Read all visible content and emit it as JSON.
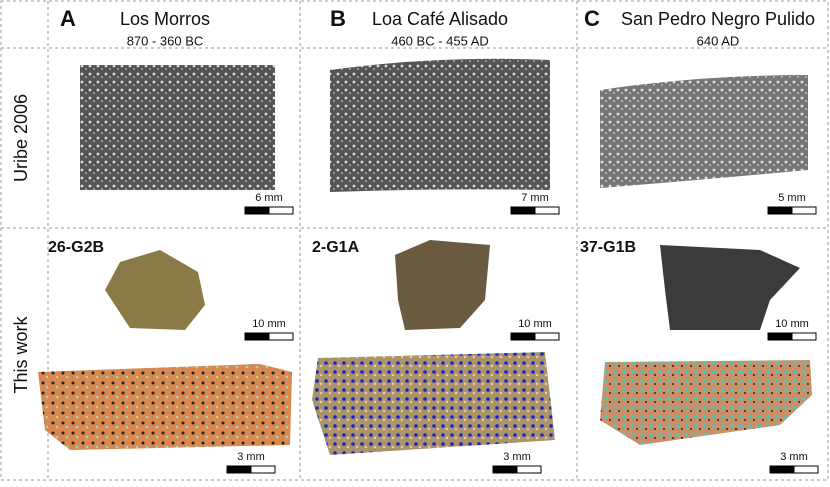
{
  "columns": [
    {
      "letter": "A",
      "name": "Los Morros",
      "date": "870 - 360 BC",
      "scale_micro": "6 mm",
      "sample": "26-G2B",
      "scale_sherd": "10 mm",
      "scale_thin": "3 mm"
    },
    {
      "letter": "B",
      "name": "Loa Café Alisado",
      "date": "460 BC - 455 AD",
      "scale_micro": "7 mm",
      "sample": "2-G1A",
      "scale_sherd": "10 mm",
      "scale_thin": "3 mm"
    },
    {
      "letter": "C",
      "name": "San Pedro Negro Pulido",
      "date": "640 AD",
      "scale_micro": "5 mm",
      "sample": "37-G1B",
      "scale_sherd": "10 mm",
      "scale_thin": "3 mm"
    }
  ],
  "rows": [
    "Uribe 2006",
    "This work"
  ]
}
